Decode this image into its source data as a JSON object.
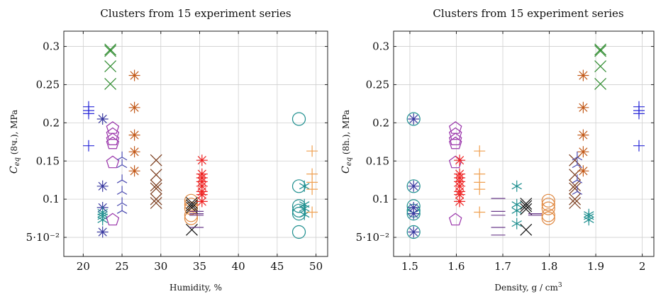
{
  "chart_data": [
    {
      "type": "scatter",
      "title": "Clusters from 15 experiment series",
      "xlabel": "Humidity, %",
      "ylabel": "C_eq (8ч.), MPa",
      "xlim": [
        17.5,
        51.5
      ],
      "ylim": [
        0.025,
        0.32
      ],
      "xticks": [
        20,
        25,
        30,
        35,
        40,
        45,
        50
      ],
      "xtick_labels": [
        "20",
        "25",
        "30",
        "35",
        "40",
        "45",
        "50"
      ],
      "yticks": [
        0.05,
        0.1,
        0.15,
        0.2,
        0.25,
        0.3
      ],
      "ytick_labels": [
        "5·10⁻²",
        "0.1",
        "0.15",
        "0.2",
        "0.25",
        "0.3"
      ],
      "grid": true,
      "series": [
        {
          "marker": "plus",
          "color": "#2a2ad8",
          "points": [
            [
              20.7,
              0.221
            ],
            [
              20.7,
              0.216
            ],
            [
              20.7,
              0.212
            ],
            [
              20.7,
              0.17
            ]
          ]
        },
        {
          "marker": "asterisk",
          "color": "#3a3aa0",
          "points": [
            [
              22.5,
              0.205
            ],
            [
              22.5,
              0.117
            ],
            [
              22.5,
              0.089
            ],
            [
              22.5,
              0.057
            ]
          ]
        },
        {
          "marker": "star",
          "color": "#1f8f8f",
          "points": [
            [
              22.5,
              0.08
            ],
            [
              22.5,
              0.083
            ],
            [
              22.5,
              0.077
            ],
            [
              22.5,
              0.073
            ]
          ]
        },
        {
          "marker": "cross",
          "color": "#2e8b2e",
          "points": [
            [
              23.5,
              0.296
            ],
            [
              23.5,
              0.294
            ],
            [
              23.5,
              0.274
            ],
            [
              23.5,
              0.251
            ]
          ]
        },
        {
          "marker": "pentagon",
          "color": "#9933aa",
          "points": [
            [
              23.8,
              0.193
            ],
            [
              23.8,
              0.185
            ],
            [
              23.8,
              0.178
            ],
            [
              23.8,
              0.173
            ],
            [
              23.8,
              0.148
            ],
            [
              23.8,
              0.073
            ]
          ]
        },
        {
          "marker": "tri",
          "color": "#4a4ab0",
          "points": [
            [
              25.0,
              0.155
            ],
            [
              25.0,
              0.145
            ],
            [
              25.0,
              0.125
            ],
            [
              25.0,
              0.11
            ],
            [
              25.0,
              0.095
            ],
            [
              25.0,
              0.085
            ]
          ]
        },
        {
          "marker": "asterisk",
          "color": "#c25a1a",
          "points": [
            [
              26.6,
              0.262
            ],
            [
              26.6,
              0.22
            ],
            [
              26.6,
              0.184
            ],
            [
              26.6,
              0.162
            ],
            [
              26.6,
              0.137
            ]
          ]
        },
        {
          "marker": "cross",
          "color": "#7a3a1a",
          "points": [
            [
              29.4,
              0.151
            ],
            [
              29.4,
              0.132
            ],
            [
              29.4,
              0.118
            ],
            [
              29.4,
              0.114
            ],
            [
              29.4,
              0.1
            ],
            [
              29.4,
              0.095
            ]
          ]
        },
        {
          "marker": "circle",
          "color": "#e08840",
          "points": [
            [
              33.9,
              0.098
            ],
            [
              33.9,
              0.093
            ],
            [
              33.9,
              0.088
            ],
            [
              33.9,
              0.079
            ],
            [
              33.9,
              0.075
            ]
          ]
        },
        {
          "marker": "cross",
          "color": "#111111",
          "points": [
            [
              34.0,
              0.095
            ],
            [
              34.0,
              0.092
            ],
            [
              34.0,
              0.089
            ],
            [
              34.0,
              0.06
            ]
          ]
        },
        {
          "marker": "dash",
          "color": "#6a3a8a",
          "points": [
            [
              34.6,
              0.084
            ],
            [
              34.6,
              0.081
            ],
            [
              34.6,
              0.079
            ],
            [
              34.6,
              0.063
            ]
          ]
        },
        {
          "marker": "asterisk",
          "color": "#ee2222",
          "points": [
            [
              35.3,
              0.151
            ],
            [
              35.3,
              0.133
            ],
            [
              35.3,
              0.128
            ],
            [
              35.3,
              0.123
            ],
            [
              35.3,
              0.117
            ],
            [
              35.3,
              0.11
            ],
            [
              35.3,
              0.106
            ],
            [
              35.3,
              0.097
            ]
          ]
        },
        {
          "marker": "circle",
          "color": "#1f8f8f",
          "points": [
            [
              47.8,
              0.205
            ],
            [
              47.8,
              0.117
            ],
            [
              47.8,
              0.091
            ],
            [
              47.8,
              0.085
            ],
            [
              47.8,
              0.081
            ],
            [
              47.8,
              0.057
            ]
          ]
        },
        {
          "marker": "star",
          "color": "#1f8f8f",
          "points": [
            [
              48.5,
              0.117
            ],
            [
              48.5,
              0.093
            ],
            [
              48.5,
              0.088
            ],
            [
              48.5,
              0.08
            ]
          ]
        },
        {
          "marker": "plus",
          "color": "#f0a050",
          "points": [
            [
              49.5,
              0.163
            ],
            [
              49.5,
              0.133
            ],
            [
              49.5,
              0.122
            ],
            [
              49.5,
              0.113
            ],
            [
              49.5,
              0.083
            ]
          ]
        }
      ]
    },
    {
      "type": "scatter",
      "title": "Clusters from 15 experiment series",
      "xlabel": "Density, g / cm³",
      "ylabel": "C_eq (8h.), MPa",
      "xlim": [
        1.465,
        2.025
      ],
      "ylim": [
        0.025,
        0.32
      ],
      "xticks": [
        1.5,
        1.6,
        1.7,
        1.8,
        1.9,
        2.0
      ],
      "xtick_labels": [
        "1.5",
        "1.6",
        "1.7",
        "1.8",
        "1.9",
        "2"
      ],
      "yticks": [
        0.05,
        0.1,
        0.15,
        0.2,
        0.25,
        0.3
      ],
      "ytick_labels": [
        "5·10⁻²",
        "0.1",
        "0.15",
        "0.2",
        "0.25",
        "0.3"
      ],
      "grid": true,
      "series": [
        {
          "marker": "circle",
          "color": "#1f8f8f",
          "points": [
            [
              1.508,
              0.205
            ],
            [
              1.508,
              0.117
            ],
            [
              1.508,
              0.091
            ],
            [
              1.508,
              0.085
            ],
            [
              1.508,
              0.081
            ],
            [
              1.508,
              0.057
            ]
          ]
        },
        {
          "marker": "asterisk",
          "color": "#3a3aa0",
          "points": [
            [
              1.508,
              0.205
            ],
            [
              1.508,
              0.117
            ],
            [
              1.508,
              0.089
            ],
            [
              1.508,
              0.081
            ],
            [
              1.508,
              0.057
            ]
          ]
        },
        {
          "marker": "pentagon",
          "color": "#9933aa",
          "points": [
            [
              1.598,
              0.193
            ],
            [
              1.598,
              0.185
            ],
            [
              1.598,
              0.178
            ],
            [
              1.598,
              0.173
            ],
            [
              1.598,
              0.148
            ],
            [
              1.598,
              0.073
            ]
          ]
        },
        {
          "marker": "asterisk",
          "color": "#ee2222",
          "points": [
            [
              1.607,
              0.151
            ],
            [
              1.607,
              0.133
            ],
            [
              1.607,
              0.128
            ],
            [
              1.607,
              0.123
            ],
            [
              1.607,
              0.117
            ],
            [
              1.607,
              0.11
            ],
            [
              1.607,
              0.106
            ],
            [
              1.607,
              0.097
            ]
          ]
        },
        {
          "marker": "plus",
          "color": "#f0a050",
          "points": [
            [
              1.65,
              0.163
            ],
            [
              1.65,
              0.133
            ],
            [
              1.65,
              0.122
            ],
            [
              1.65,
              0.113
            ],
            [
              1.65,
              0.083
            ]
          ]
        },
        {
          "marker": "dash",
          "color": "#6a3a8a",
          "points": [
            [
              1.69,
              0.101
            ],
            [
              1.69,
              0.084
            ],
            [
              1.69,
              0.079
            ],
            [
              1.69,
              0.063
            ],
            [
              1.69,
              0.053
            ]
          ]
        },
        {
          "marker": "star",
          "color": "#1f8f8f",
          "points": [
            [
              1.73,
              0.117
            ],
            [
              1.73,
              0.093
            ],
            [
              1.73,
              0.085
            ],
            [
              1.73,
              0.068
            ]
          ]
        },
        {
          "marker": "cross",
          "color": "#111111",
          "points": [
            [
              1.75,
              0.094
            ],
            [
              1.75,
              0.091
            ],
            [
              1.75,
              0.087
            ],
            [
              1.75,
              0.06
            ]
          ]
        },
        {
          "marker": "dash",
          "color": "#6a3a8a",
          "points": [
            [
              1.77,
              0.081
            ],
            [
              1.77,
              0.079
            ]
          ]
        },
        {
          "marker": "circle",
          "color": "#e08840",
          "points": [
            [
              1.798,
              0.098
            ],
            [
              1.798,
              0.093
            ],
            [
              1.798,
              0.088
            ],
            [
              1.798,
              0.079
            ],
            [
              1.798,
              0.075
            ]
          ]
        },
        {
          "marker": "cross",
          "color": "#7a3a1a",
          "points": [
            [
              1.855,
              0.151
            ],
            [
              1.855,
              0.132
            ],
            [
              1.855,
              0.118
            ],
            [
              1.855,
              0.114
            ],
            [
              1.855,
              0.1
            ],
            [
              1.855,
              0.095
            ]
          ]
        },
        {
          "marker": "tri",
          "color": "#4a4ab0",
          "points": [
            [
              1.86,
              0.155
            ],
            [
              1.86,
              0.145
            ],
            [
              1.86,
              0.125
            ],
            [
              1.86,
              0.11
            ]
          ]
        },
        {
          "marker": "asterisk",
          "color": "#c25a1a",
          "points": [
            [
              1.873,
              0.262
            ],
            [
              1.873,
              0.22
            ],
            [
              1.873,
              0.184
            ],
            [
              1.873,
              0.162
            ],
            [
              1.873,
              0.137
            ]
          ]
        },
        {
          "marker": "star",
          "color": "#1f8f8f",
          "points": [
            [
              1.885,
              0.08
            ],
            [
              1.885,
              0.077
            ],
            [
              1.885,
              0.073
            ]
          ]
        },
        {
          "marker": "cross",
          "color": "#2e8b2e",
          "points": [
            [
              1.91,
              0.296
            ],
            [
              1.91,
              0.294
            ],
            [
              1.91,
              0.274
            ],
            [
              1.91,
              0.251
            ]
          ]
        },
        {
          "marker": "plus",
          "color": "#2a2ad8",
          "points": [
            [
              1.993,
              0.221
            ],
            [
              1.993,
              0.216
            ],
            [
              1.993,
              0.212
            ],
            [
              1.993,
              0.17
            ]
          ]
        }
      ]
    }
  ]
}
